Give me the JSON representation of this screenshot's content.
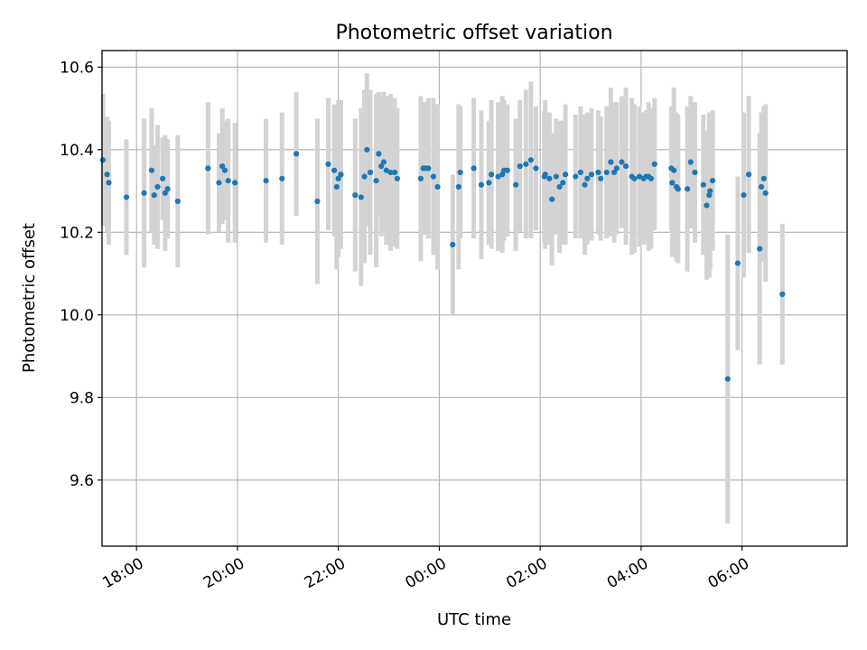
{
  "chart_data": {
    "type": "scatter",
    "title": "Photometric offset variation",
    "xlabel": "UTC time",
    "ylabel": "Photometric offset",
    "grid": true,
    "legend": "none",
    "ylim": [
      9.44,
      10.64
    ],
    "xlim": [
      "17:19",
      "32:05"
    ],
    "ytick_labels": [
      "9.6",
      "9.8",
      "10.0",
      "10.2",
      "10.4",
      "10.6"
    ],
    "ytick_values": [
      9.6,
      9.8,
      10.0,
      10.2,
      10.4,
      10.6
    ],
    "xtick_labels": [
      "18:00",
      "20:00",
      "22:00",
      "00:00",
      "02:00",
      "04:00",
      "06:00"
    ],
    "xtick_values": [
      "18:00",
      "20:00",
      "22:00",
      "24:00",
      "26:00",
      "28:00",
      "30:00"
    ],
    "series": [
      {
        "marker_color": "#1f77b4",
        "errorbar_color": "#d3d3d3",
        "points": [
          {
            "x": "17:20",
            "y": 10.375,
            "err": 0.16
          },
          {
            "x": "17:25",
            "y": 10.34,
            "err": 0.14
          },
          {
            "x": "17:27",
            "y": 10.32,
            "err": 0.15
          },
          {
            "x": "17:48",
            "y": 10.285,
            "err": 0.14
          },
          {
            "x": "18:09",
            "y": 10.295,
            "err": 0.18
          },
          {
            "x": "18:18",
            "y": 10.35,
            "err": 0.15
          },
          {
            "x": "18:21",
            "y": 10.29,
            "err": 0.12
          },
          {
            "x": "18:25",
            "y": 10.31,
            "err": 0.15
          },
          {
            "x": "18:31",
            "y": 10.33,
            "err": 0.1
          },
          {
            "x": "18:34",
            "y": 10.295,
            "err": 0.14
          },
          {
            "x": "18:37",
            "y": 10.305,
            "err": 0.12
          },
          {
            "x": "18:49",
            "y": 10.275,
            "err": 0.16
          },
          {
            "x": "19:25",
            "y": 10.355,
            "err": 0.16
          },
          {
            "x": "19:38",
            "y": 10.32,
            "err": 0.12
          },
          {
            "x": "19:42",
            "y": 10.36,
            "err": 0.14
          },
          {
            "x": "19:45",
            "y": 10.35,
            "err": 0.12
          },
          {
            "x": "19:49",
            "y": 10.325,
            "err": 0.15
          },
          {
            "x": "19:57",
            "y": 10.32,
            "err": 0.145
          },
          {
            "x": "20:34",
            "y": 10.325,
            "err": 0.15
          },
          {
            "x": "20:53",
            "y": 10.33,
            "err": 0.16
          },
          {
            "x": "21:10",
            "y": 10.39,
            "err": 0.15
          },
          {
            "x": "21:35",
            "y": 10.275,
            "err": 0.2
          },
          {
            "x": "21:48",
            "y": 10.365,
            "err": 0.16
          },
          {
            "x": "21:55",
            "y": 10.35,
            "err": 0.16
          },
          {
            "x": "21:58",
            "y": 10.31,
            "err": 0.2
          },
          {
            "x": "22:00",
            "y": 10.33,
            "err": 0.19
          },
          {
            "x": "22:03",
            "y": 10.34,
            "err": 0.18
          },
          {
            "x": "22:20",
            "y": 10.29,
            "err": 0.185
          },
          {
            "x": "22:27",
            "y": 10.285,
            "err": 0.215
          },
          {
            "x": "22:31",
            "y": 10.335,
            "err": 0.21
          },
          {
            "x": "22:34",
            "y": 10.4,
            "err": 0.185
          },
          {
            "x": "22:38",
            "y": 10.345,
            "err": 0.2
          },
          {
            "x": "22:45",
            "y": 10.325,
            "err": 0.21
          },
          {
            "x": "22:48",
            "y": 10.39,
            "err": 0.15
          },
          {
            "x": "22:51",
            "y": 10.36,
            "err": 0.17
          },
          {
            "x": "22:54",
            "y": 10.37,
            "err": 0.17
          },
          {
            "x": "22:57",
            "y": 10.35,
            "err": 0.18
          },
          {
            "x": "23:02",
            "y": 10.345,
            "err": 0.19
          },
          {
            "x": "23:07",
            "y": 10.345,
            "err": 0.18
          },
          {
            "x": "23:10",
            "y": 10.33,
            "err": 0.17
          },
          {
            "x": "23:38",
            "y": 10.33,
            "err": 0.2
          },
          {
            "x": "23:41",
            "y": 10.355,
            "err": 0.16
          },
          {
            "x": "23:44",
            "y": 10.355,
            "err": 0.16
          },
          {
            "x": "23:47",
            "y": 10.355,
            "err": 0.17
          },
          {
            "x": "23:53",
            "y": 10.335,
            "err": 0.19
          },
          {
            "x": "23:58",
            "y": 10.31,
            "err": 0.2
          },
          {
            "x": "24:16",
            "y": 10.17,
            "err": 0.17
          },
          {
            "x": "24:23",
            "y": 10.31,
            "err": 0.2
          },
          {
            "x": "24:25",
            "y": 10.345,
            "err": 0.16
          },
          {
            "x": "24:41",
            "y": 10.355,
            "err": 0.17
          },
          {
            "x": "24:50",
            "y": 10.315,
            "err": 0.18
          },
          {
            "x": "24:59",
            "y": 10.32,
            "err": 0.15
          },
          {
            "x": "25:02",
            "y": 10.34,
            "err": 0.18
          },
          {
            "x": "25:10",
            "y": 10.335,
            "err": 0.18
          },
          {
            "x": "25:15",
            "y": 10.34,
            "err": 0.19
          },
          {
            "x": "25:17",
            "y": 10.35,
            "err": 0.17
          },
          {
            "x": "25:21",
            "y": 10.35,
            "err": 0.16
          },
          {
            "x": "25:31",
            "y": 10.315,
            "err": 0.16
          },
          {
            "x": "25:36",
            "y": 10.36,
            "err": 0.16
          },
          {
            "x": "25:43",
            "y": 10.365,
            "err": 0.18
          },
          {
            "x": "25:49",
            "y": 10.375,
            "err": 0.19
          },
          {
            "x": "25:55",
            "y": 10.355,
            "err": 0.15
          },
          {
            "x": "26:05",
            "y": 10.335,
            "err": 0.16
          },
          {
            "x": "26:06",
            "y": 10.34,
            "err": 0.18
          },
          {
            "x": "26:11",
            "y": 10.33,
            "err": 0.16
          },
          {
            "x": "26:14",
            "y": 10.28,
            "err": 0.16
          },
          {
            "x": "26:19",
            "y": 10.335,
            "err": 0.14
          },
          {
            "x": "26:23",
            "y": 10.31,
            "err": 0.16
          },
          {
            "x": "26:27",
            "y": 10.32,
            "err": 0.15
          },
          {
            "x": "26:30",
            "y": 10.34,
            "err": 0.17
          },
          {
            "x": "26:42",
            "y": 10.335,
            "err": 0.15
          },
          {
            "x": "26:48",
            "y": 10.345,
            "err": 0.16
          },
          {
            "x": "26:53",
            "y": 10.315,
            "err": 0.17
          },
          {
            "x": "26:56",
            "y": 10.33,
            "err": 0.16
          },
          {
            "x": "27:01",
            "y": 10.34,
            "err": 0.16
          },
          {
            "x": "27:09",
            "y": 10.345,
            "err": 0.15
          },
          {
            "x": "27:12",
            "y": 10.33,
            "err": 0.15
          },
          {
            "x": "27:19",
            "y": 10.345,
            "err": 0.16
          },
          {
            "x": "27:24",
            "y": 10.37,
            "err": 0.18
          },
          {
            "x": "27:28",
            "y": 10.345,
            "err": 0.17
          },
          {
            "x": "27:31",
            "y": 10.355,
            "err": 0.16
          },
          {
            "x": "27:37",
            "y": 10.37,
            "err": 0.16
          },
          {
            "x": "27:42",
            "y": 10.36,
            "err": 0.19
          },
          {
            "x": "27:49",
            "y": 10.335,
            "err": 0.19
          },
          {
            "x": "27:52",
            "y": 10.33,
            "err": 0.18
          },
          {
            "x": "27:58",
            "y": 10.335,
            "err": 0.17
          },
          {
            "x": "28:03",
            "y": 10.33,
            "err": 0.16
          },
          {
            "x": "28:06",
            "y": 10.335,
            "err": 0.16
          },
          {
            "x": "28:09",
            "y": 10.335,
            "err": 0.18
          },
          {
            "x": "28:12",
            "y": 10.33,
            "err": 0.17
          },
          {
            "x": "28:16",
            "y": 10.365,
            "err": 0.16
          },
          {
            "x": "28:36",
            "y": 10.355,
            "err": 0.15
          },
          {
            "x": "28:37",
            "y": 10.32,
            "err": 0.18
          },
          {
            "x": "28:39",
            "y": 10.35,
            "err": 0.2
          },
          {
            "x": "28:42",
            "y": 10.31,
            "err": 0.18
          },
          {
            "x": "28:44",
            "y": 10.305,
            "err": 0.18
          },
          {
            "x": "28:55",
            "y": 10.305,
            "err": 0.2
          },
          {
            "x": "28:59",
            "y": 10.37,
            "err": 0.16
          },
          {
            "x": "29:04",
            "y": 10.345,
            "err": 0.17
          },
          {
            "x": "29:14",
            "y": 10.315,
            "err": 0.17
          },
          {
            "x": "29:18",
            "y": 10.265,
            "err": 0.18
          },
          {
            "x": "29:21",
            "y": 10.29,
            "err": 0.2
          },
          {
            "x": "29:22",
            "y": 10.3,
            "err": 0.19
          },
          {
            "x": "29:25",
            "y": 10.325,
            "err": 0.17
          },
          {
            "x": "29:43",
            "y": 9.845,
            "err": 0.35
          },
          {
            "x": "29:55",
            "y": 10.125,
            "err": 0.21
          },
          {
            "x": "30:02",
            "y": 10.29,
            "err": 0.2
          },
          {
            "x": "30:08",
            "y": 10.34,
            "err": 0.19
          },
          {
            "x": "30:21",
            "y": 10.16,
            "err": 0.28
          },
          {
            "x": "30:23",
            "y": 10.31,
            "err": 0.18
          },
          {
            "x": "30:26",
            "y": 10.33,
            "err": 0.175
          },
          {
            "x": "30:28",
            "y": 10.295,
            "err": 0.215
          },
          {
            "x": "30:48",
            "y": 10.05,
            "err": 0.17
          }
        ]
      }
    ]
  }
}
